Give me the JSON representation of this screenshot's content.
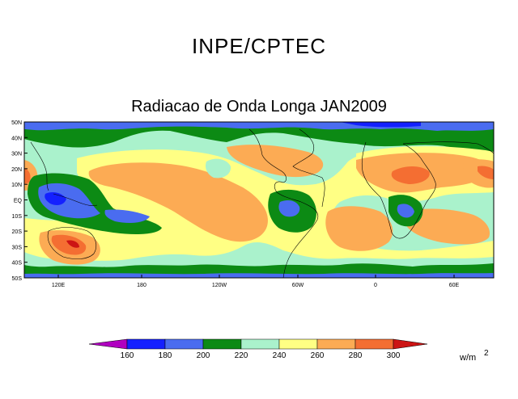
{
  "header": {
    "title": "INPE/CPTEC",
    "subtitle": "Radiacao de Onda Longa JAN2009"
  },
  "map": {
    "lat_labels": [
      "50N",
      "40N",
      "30N",
      "20N",
      "10N",
      "EQ",
      "10S",
      "20S",
      "30S",
      "40S",
      "50S"
    ],
    "lon_labels": [
      "120E",
      "180",
      "120W",
      "60W",
      "0",
      "60E"
    ],
    "palette": {
      "lt160": "#b000c0",
      "b160_180": "#1420ff",
      "b180_200": "#4a6cf0",
      "b200_220": "#0c8a14",
      "b220_240": "#aaf2cc",
      "b240_260": "#ffff84",
      "b260_280": "#fcab54",
      "b280_300": "#f46e32",
      "gt300": "#cc1414"
    }
  },
  "colorbar": {
    "ticks": [
      "160",
      "180",
      "200",
      "220",
      "240",
      "260",
      "280",
      "300"
    ],
    "units": "w/m",
    "units_exp": "2"
  }
}
